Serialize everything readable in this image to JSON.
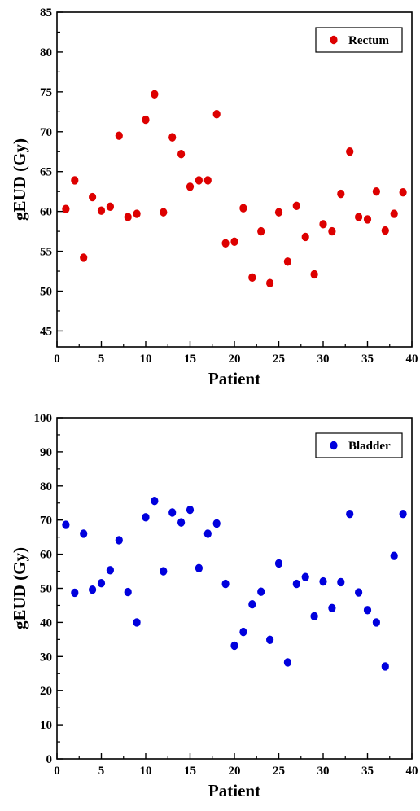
{
  "chart_data": [
    {
      "type": "scatter",
      "xlabel": "Patient",
      "ylabel": "gEUD (Gy)",
      "xlim": [
        0,
        40
      ],
      "ylim": [
        43,
        85
      ],
      "xticks": [
        0,
        5,
        10,
        15,
        20,
        25,
        30,
        35,
        40
      ],
      "yticks": [
        45,
        50,
        55,
        60,
        65,
        70,
        75,
        80,
        85
      ],
      "grid": false,
      "legend_position": "top-right",
      "series": [
        {
          "name": "Rectum",
          "color": "#dd0000",
          "x": [
            1,
            2,
            3,
            4,
            5,
            6,
            7,
            8,
            9,
            10,
            11,
            12,
            13,
            14,
            15,
            16,
            17,
            18,
            19,
            20,
            21,
            22,
            23,
            24,
            25,
            26,
            27,
            28,
            29,
            30,
            31,
            32,
            33,
            34,
            35,
            36,
            37,
            38,
            39
          ],
          "y": [
            60.3,
            63.9,
            54.2,
            61.8,
            60.1,
            60.6,
            69.5,
            59.3,
            59.7,
            71.5,
            74.7,
            59.9,
            69.3,
            67.2,
            63.1,
            63.9,
            63.9,
            72.2,
            56.0,
            56.2,
            60.4,
            51.7,
            57.5,
            51.0,
            59.9,
            53.7,
            60.7,
            56.8,
            52.1,
            58.4,
            57.5,
            62.2,
            67.5,
            59.3,
            59.0,
            62.5,
            57.6,
            59.7,
            62.4
          ]
        }
      ]
    },
    {
      "type": "scatter",
      "xlabel": "Patient",
      "ylabel": "gEUD (Gy)",
      "xlim": [
        0,
        40
      ],
      "ylim": [
        0,
        100
      ],
      "xticks": [
        0,
        5,
        10,
        15,
        20,
        25,
        30,
        35,
        40
      ],
      "yticks": [
        0,
        10,
        20,
        30,
        40,
        50,
        60,
        70,
        80,
        90,
        100
      ],
      "grid": false,
      "legend_position": "top-right",
      "series": [
        {
          "name": "Bladder",
          "color": "#0000dd",
          "x": [
            1,
            2,
            3,
            4,
            5,
            6,
            7,
            8,
            9,
            10,
            11,
            12,
            13,
            14,
            15,
            16,
            17,
            18,
            19,
            20,
            21,
            22,
            23,
            24,
            25,
            26,
            27,
            28,
            29,
            30,
            31,
            32,
            33,
            34,
            35,
            36,
            37,
            38,
            39
          ],
          "y": [
            68.6,
            48.7,
            66.0,
            49.6,
            51.5,
            55.3,
            64.1,
            48.9,
            40.0,
            70.8,
            75.6,
            55.0,
            72.2,
            69.3,
            73.0,
            55.9,
            66.0,
            69.0,
            51.3,
            33.2,
            37.2,
            45.3,
            49.0,
            34.9,
            57.3,
            28.3,
            51.3,
            53.3,
            41.8,
            52.0,
            44.2,
            51.8,
            71.8,
            48.8,
            43.6,
            40.0,
            27.1,
            59.5,
            71.8
          ]
        }
      ]
    }
  ]
}
